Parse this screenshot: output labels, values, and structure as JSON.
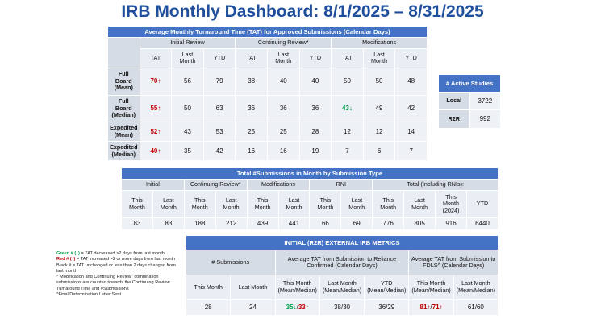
{
  "header": {
    "title": "IRB Monthly Dashboard: 8/1/2025 – 8/31/2025"
  },
  "tat_table": {
    "title": "Average Monthly Turnaround Time (TAT) for Approved Submissions (Calendar Days)",
    "groups": [
      {
        "label": "Initial Review",
        "columns": [
          "TAT",
          "Last Month",
          "YTD"
        ]
      },
      {
        "label": "Continuing Review*",
        "columns": [
          "TAT",
          "Last Month",
          "YTD"
        ]
      },
      {
        "label": "Modifications",
        "columns": [
          "TAT",
          "Last Month",
          "YTD"
        ]
      }
    ],
    "rows": [
      {
        "label": "Full Board (Mean)",
        "cells": [
          {
            "parts": [
              {
                "text": "70↑",
                "color": "#c00000"
              }
            ]
          },
          56,
          79,
          38,
          40,
          40,
          50,
          50,
          48
        ]
      },
      {
        "label": "Full Board (Median)",
        "cells": [
          {
            "parts": [
              {
                "text": "55↑",
                "color": "#c00000"
              }
            ]
          },
          50,
          63,
          36,
          36,
          36,
          {
            "parts": [
              {
                "text": "43↓",
                "color": "#00a04a"
              }
            ]
          },
          49,
          42
        ]
      },
      {
        "label": "Expedited (Mean)",
        "cells": [
          {
            "parts": [
              {
                "text": "52↑",
                "color": "#c00000"
              }
            ]
          },
          43,
          53,
          25,
          25,
          28,
          12,
          12,
          14
        ]
      },
      {
        "label": "Expedited (Median)",
        "cells": [
          {
            "parts": [
              {
                "text": "40↑",
                "color": "#c00000"
              }
            ]
          },
          35,
          42,
          16,
          16,
          19,
          7,
          6,
          7
        ]
      }
    ]
  },
  "active_studies": {
    "title": "# Active Studies",
    "rows": [
      {
        "label": "Local",
        "value": 3722
      },
      {
        "label": "R2R",
        "value": 992
      }
    ]
  },
  "submissions_table": {
    "title": "Total #Submissions in Month by Submission Type",
    "groups": [
      {
        "label": "Initial",
        "columns": [
          "This Month",
          "Last Month"
        ]
      },
      {
        "label": "Continuing Review*",
        "columns": [
          "This Month",
          "Last Month"
        ]
      },
      {
        "label": "Modifications",
        "columns": [
          "This Month",
          "Last Month"
        ]
      },
      {
        "label": "RNI",
        "columns": [
          "This Month",
          "Last Month"
        ]
      },
      {
        "label": "Total (Including RNIs):",
        "columns": [
          "This Month",
          "Last Month",
          "This Month (2024)",
          "YTD"
        ]
      }
    ],
    "values": [
      83,
      83,
      188,
      212,
      439,
      441,
      66,
      69,
      776,
      805,
      916,
      6440
    ]
  },
  "r2r_table": {
    "title": "INITIAL (R2R) EXTERNAL IRB METRICS",
    "groups": [
      {
        "label": "# Submissions",
        "columns": [
          "This Month",
          "Last Month"
        ]
      },
      {
        "label": "Average TAT from Submission to Reliance Confirmed (Calendar Days)",
        "columns": [
          "This Month (Mean/Median)",
          "Last Month (Mean/Median)",
          "YTD (Mean/Median)"
        ]
      },
      {
        "label": "Average TAT from Submission to FDLS^ (Calendar Days)",
        "columns": [
          "This Month (Mean/Median)",
          "Last Month (Mean/Median)"
        ]
      }
    ],
    "values": [
      28,
      24,
      {
        "parts": [
          {
            "text": "35↓",
            "color": "#00a04a"
          },
          {
            "text": "/"
          },
          {
            "text": "33↑",
            "color": "#c00000"
          }
        ]
      },
      "38/30",
      "36/29",
      {
        "parts": [
          {
            "text": "81↑",
            "color": "#c00000"
          },
          {
            "text": "/"
          },
          {
            "text": "71↑",
            "color": "#c00000"
          }
        ]
      },
      "61/60"
    ]
  },
  "notes": [
    {
      "parts": [
        {
          "text": "Green # (↓)",
          "color": "#00a04a"
        },
        {
          "text": " = TAT decreased >2 days from last month"
        }
      ]
    },
    {
      "parts": [
        {
          "text": "Red # (↑)",
          "color": "#c00000"
        },
        {
          "text": " = TAT increased >2 or more days from last month"
        }
      ]
    },
    {
      "parts": [
        {
          "text": "Black # = TAT unchanged or less than 2 days changed from last month"
        }
      ]
    },
    {
      "parts": [
        {
          "text": "*“Modification and Continuing Review” combination submissions are counted towards the Continuing Review Turnaround Time and #Submissions"
        }
      ]
    },
    {
      "parts": [
        {
          "text": "^Final Determination Letter Sent"
        }
      ]
    }
  ]
}
